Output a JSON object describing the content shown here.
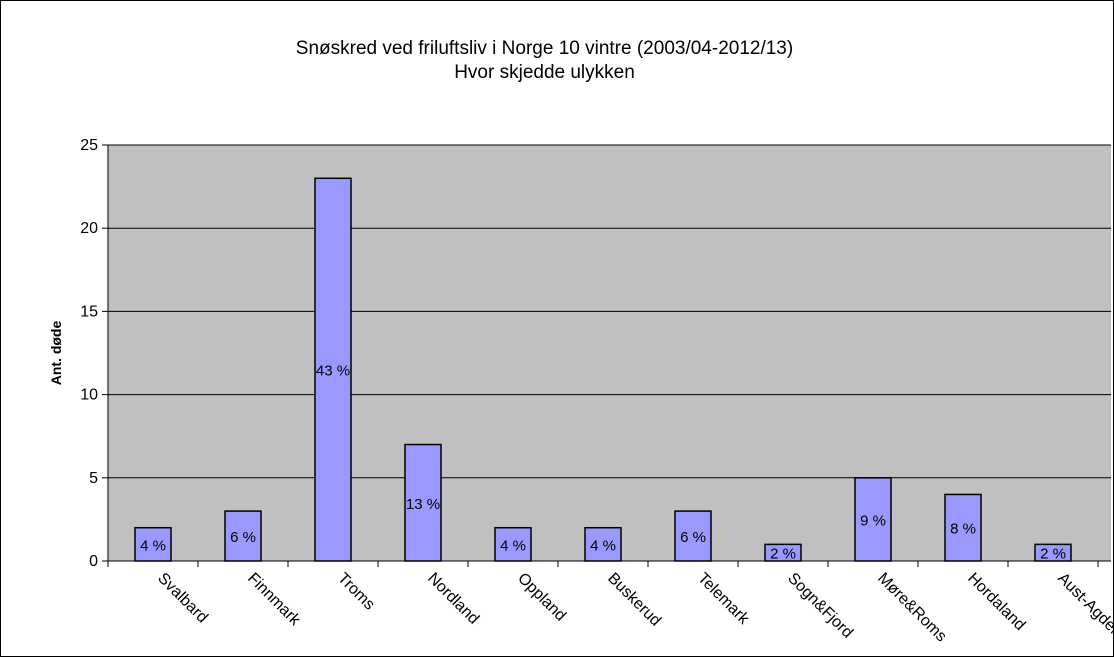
{
  "chart_data": {
    "type": "bar",
    "title": "Snøskred ved friluftsliv i Norge 10 vintre (2003/04-2012/13)",
    "subtitle": "Hvor skjedde ulykken",
    "xlabel": "",
    "ylabel": "Ant. døde",
    "ylim": [
      0,
      25
    ],
    "yticks": [
      0,
      5,
      10,
      15,
      20,
      25
    ],
    "ytick_labels": [
      "0",
      "5",
      "10",
      "15",
      "20",
      "25"
    ],
    "grid": true,
    "legend": "none",
    "categories": [
      "Svalbard",
      "Finnmark",
      "Troms",
      "Nordland",
      "Oppland",
      "Buskerud",
      "Telemark",
      "Sogn&Fjord",
      "Møre&Roms",
      "Hordaland",
      "Aust-Agder"
    ],
    "values": [
      2,
      3,
      23,
      7,
      2,
      2,
      3,
      1,
      5,
      4,
      1
    ],
    "data_labels": [
      "4 %",
      "6 %",
      "43 %",
      "13 %",
      "4 %",
      "4 %",
      "6 %",
      "2 %",
      "9 %",
      "8 %",
      "2 %"
    ],
    "colors": {
      "plot_background": "#c0c0c0",
      "bar_fill": "#9999ff",
      "bar_stroke": "#000000",
      "gridline": "#000000"
    }
  }
}
